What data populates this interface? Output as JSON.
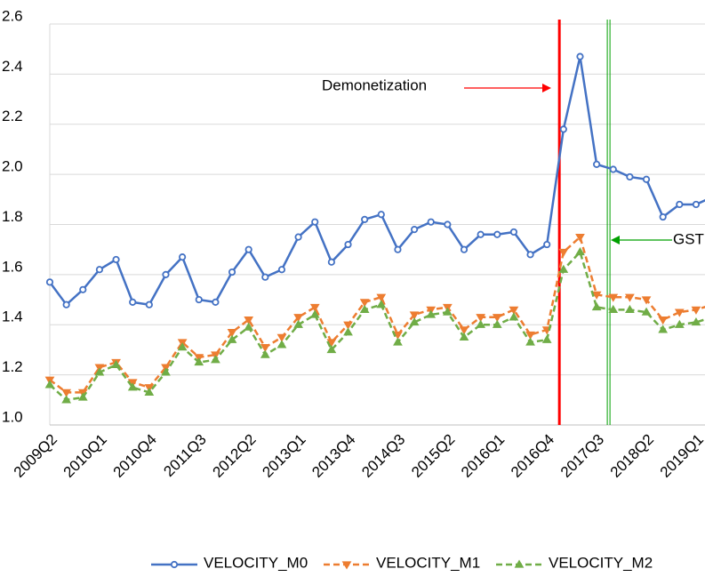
{
  "chart_data": {
    "type": "line",
    "categories": [
      "2009Q2",
      null,
      null,
      "2010Q1",
      null,
      null,
      "2010Q4",
      null,
      null,
      "2011Q3",
      null,
      null,
      "2012Q2",
      null,
      null,
      "2013Q1",
      null,
      null,
      "2013Q4",
      null,
      null,
      "2014Q3",
      null,
      null,
      "2015Q2",
      null,
      null,
      "2016Q1",
      null,
      null,
      "2016Q4",
      null,
      null,
      "2017Q3",
      null,
      null,
      "2018Q2",
      null,
      null,
      "2019Q1",
      null
    ],
    "series": [
      {
        "name": "VELOCITY_M0",
        "color": "#4472c4",
        "marker": "circle",
        "dashed": false,
        "values": [
          1.57,
          1.48,
          1.54,
          1.62,
          1.66,
          1.49,
          1.48,
          1.6,
          1.67,
          1.5,
          1.49,
          1.61,
          1.7,
          1.59,
          1.62,
          1.75,
          1.81,
          1.65,
          1.72,
          1.82,
          1.84,
          1.7,
          1.78,
          1.81,
          1.8,
          1.7,
          1.76,
          1.76,
          1.77,
          1.68,
          1.72,
          2.18,
          2.47,
          2.04,
          2.02,
          1.99,
          1.98,
          1.83,
          1.88,
          1.88,
          1.91
        ]
      },
      {
        "name": "VELOCITY_M1",
        "color": "#ed7d31",
        "marker": "triangle-down",
        "dashed": true,
        "values": [
          1.18,
          1.13,
          1.13,
          1.23,
          1.25,
          1.17,
          1.15,
          1.23,
          1.33,
          1.27,
          1.28,
          1.37,
          1.42,
          1.31,
          1.35,
          1.43,
          1.47,
          1.33,
          1.4,
          1.49,
          1.51,
          1.36,
          1.44,
          1.46,
          1.47,
          1.38,
          1.43,
          1.43,
          1.46,
          1.36,
          1.38,
          1.69,
          1.75,
          1.52,
          1.51,
          1.51,
          1.5,
          1.42,
          1.45,
          1.46,
          1.48
        ]
      },
      {
        "name": "VELOCITY_M2",
        "color": "#70ad47",
        "marker": "triangle-up",
        "dashed": true,
        "values": [
          1.16,
          1.1,
          1.11,
          1.21,
          1.24,
          1.15,
          1.13,
          1.21,
          1.31,
          1.25,
          1.26,
          1.34,
          1.39,
          1.28,
          1.32,
          1.4,
          1.44,
          1.3,
          1.37,
          1.46,
          1.48,
          1.33,
          1.41,
          1.44,
          1.45,
          1.35,
          1.4,
          1.4,
          1.43,
          1.33,
          1.34,
          1.62,
          1.69,
          1.47,
          1.46,
          1.46,
          1.45,
          1.38,
          1.4,
          1.41,
          1.43
        ]
      }
    ],
    "ylim": [
      1.0,
      2.6
    ],
    "yticks": [
      {
        "value": 1.0,
        "label": "1.0"
      },
      1.2,
      1.4,
      1.6,
      1.8,
      {
        "value": 2.0,
        "label": "2.0"
      },
      2.2,
      2.4,
      2.6
    ],
    "grid": true,
    "legend": "bottom",
    "annotations": [
      {
        "text": "Demonetization",
        "color": "#ff0000"
      },
      {
        "text": "GST",
        "color": "#00a000"
      }
    ]
  }
}
